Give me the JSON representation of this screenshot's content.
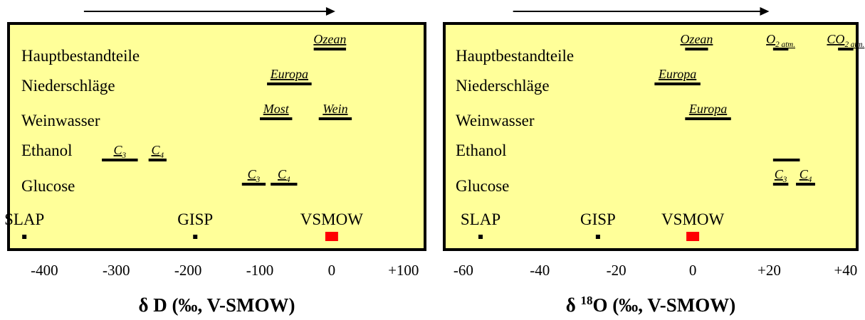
{
  "chart_data": [
    {
      "type": "range",
      "xlabel": "δ D (‰, V-SMOW)",
      "xlim": [
        -450,
        130
      ],
      "ticks": [
        "-400",
        "-300",
        "-200",
        "-100",
        "0",
        "+100"
      ],
      "tick_values": [
        -400,
        -300,
        -200,
        -100,
        0,
        100
      ],
      "arrow_from": -345,
      "arrow_to": 5,
      "background_color": "#ffff99",
      "rows": [
        {
          "label": "Hauptbestandteile"
        },
        {
          "label": "Niederschläge"
        },
        {
          "label": "Weinwasser"
        },
        {
          "label": "Ethanol"
        },
        {
          "label": "Glucose"
        }
      ],
      "ranges": [
        {
          "row": 0,
          "label": "Ozean",
          "from": -25,
          "to": 20
        },
        {
          "row": 1,
          "label": "Europa",
          "from": -90,
          "to": -28
        },
        {
          "row": 2,
          "label": "Most",
          "from": -100,
          "to": -55
        },
        {
          "row": 2,
          "label": "Wein",
          "from": -18,
          "to": 28
        },
        {
          "row": 3,
          "label": "C3",
          "from": -320,
          "to": -270
        },
        {
          "row": 3,
          "label": "C4",
          "from": -255,
          "to": -230
        },
        {
          "row": 4,
          "label": "C3",
          "from": -125,
          "to": -92
        },
        {
          "row": 4,
          "label": "C4",
          "from": -85,
          "to": -48
        }
      ],
      "standards": [
        {
          "label": "SLAP",
          "value": -428,
          "color": "#000000"
        },
        {
          "label": "GISP",
          "value": -190,
          "color": "#000000"
        },
        {
          "label": "VSMOW",
          "value": 0,
          "color": "#ff0000"
        }
      ]
    },
    {
      "type": "range",
      "xlabel": "δ 18O (‰, V-SMOW)",
      "xlim": [
        -65,
        43
      ],
      "ticks": [
        "-60",
        "-40",
        "-20",
        "0",
        "+20",
        "+40"
      ],
      "tick_values": [
        -60,
        -40,
        -20,
        0,
        20,
        40
      ],
      "arrow_from": -47,
      "arrow_to": 20,
      "background_color": "#ffff99",
      "rows": [
        {
          "label": "Hauptbestandteile"
        },
        {
          "label": "Niederschläge"
        },
        {
          "label": "Weinwasser"
        },
        {
          "label": "Ethanol"
        },
        {
          "label": "Glucose"
        }
      ],
      "ranges": [
        {
          "row": 0,
          "label": "Ozean",
          "from": -2,
          "to": 4
        },
        {
          "row": 0,
          "label": "O2 atm.",
          "from": 21,
          "to": 25
        },
        {
          "row": 0,
          "label": "CO2 atm.",
          "from": 38,
          "to": 42
        },
        {
          "row": 1,
          "label": "Europa",
          "from": -10,
          "to": 2
        },
        {
          "row": 2,
          "label": "Europa",
          "from": -2,
          "to": 10
        },
        {
          "row": 3,
          "label": "",
          "from": 21,
          "to": 28
        },
        {
          "row": 4,
          "label": "C3",
          "from": 21,
          "to": 25
        },
        {
          "row": 4,
          "label": "C4",
          "from": 27,
          "to": 32
        }
      ],
      "standards": [
        {
          "label": "SLAP",
          "value": -55.5,
          "color": "#000000"
        },
        {
          "label": "GISP",
          "value": -24.8,
          "color": "#000000"
        },
        {
          "label": "VSMOW",
          "value": 0,
          "color": "#ff0000"
        }
      ]
    }
  ]
}
